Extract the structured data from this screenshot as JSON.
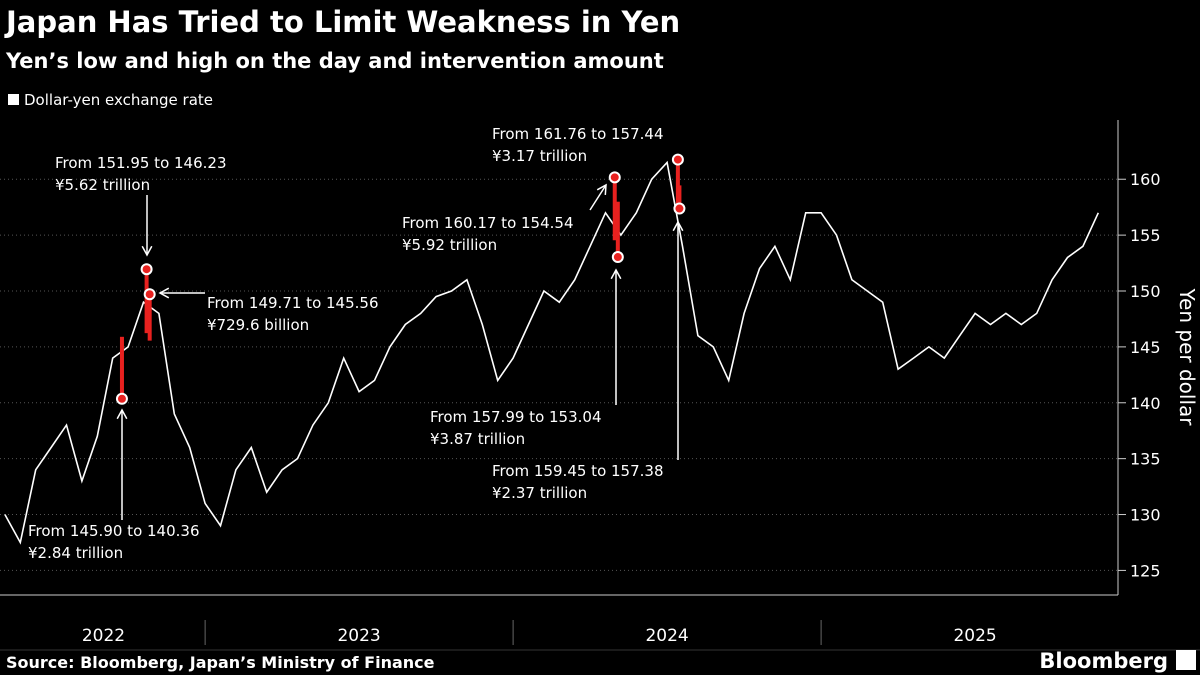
{
  "chart_data": {
    "type": "line",
    "title": "Japan Has Tried to Limit Weakness in Yen",
    "subtitle": "Yen’s low and high on the day and intervention amount",
    "y_label": "Yen per dollar",
    "source": "Source: Bloomberg, Japan’s Ministry of Finance",
    "brand": "Bloomberg",
    "xlim": [
      2022.334,
      2025.964
    ],
    "xticks": [
      2023,
      2024,
      2025
    ],
    "xtick_labels": [
      {
        "value": 2022.67,
        "label": "2022"
      },
      {
        "value": 2023.5,
        "label": "2023"
      },
      {
        "value": 2024.5,
        "label": "2024"
      },
      {
        "value": 2025.5,
        "label": "2025"
      }
    ],
    "ylim": [
      122.8,
      165.3
    ],
    "yticks": [
      125,
      130,
      135,
      140,
      145,
      150,
      155,
      160
    ],
    "grid": true,
    "series": [
      {
        "name": "Dollar-yen exchange rate",
        "color": "#ffffff",
        "x": [
          2022.35,
          2022.4,
          2022.45,
          2022.5,
          2022.55,
          2022.6,
          2022.65,
          2022.7,
          2022.75,
          2022.8,
          2022.85,
          2022.9,
          2022.95,
          2023.0,
          2023.05,
          2023.1,
          2023.15,
          2023.2,
          2023.25,
          2023.3,
          2023.35,
          2023.4,
          2023.45,
          2023.5,
          2023.55,
          2023.6,
          2023.65,
          2023.7,
          2023.75,
          2023.8,
          2023.85,
          2023.9,
          2023.95,
          2024.0,
          2024.05,
          2024.1,
          2024.15,
          2024.2,
          2024.25,
          2024.3,
          2024.35,
          2024.4,
          2024.45,
          2024.5,
          2024.55,
          2024.6,
          2024.65,
          2024.7,
          2024.75,
          2024.8,
          2024.85,
          2024.9,
          2024.95,
          2025.0,
          2025.05,
          2025.1,
          2025.15,
          2025.2,
          2025.25,
          2025.3,
          2025.35,
          2025.4,
          2025.45,
          2025.5,
          2025.55,
          2025.6,
          2025.65,
          2025.7,
          2025.75,
          2025.8,
          2025.85,
          2025.9
        ],
        "values": [
          130,
          127.5,
          134,
          136,
          138,
          133,
          137,
          144,
          145,
          149,
          148,
          139,
          136,
          131,
          129,
          134,
          136,
          132,
          134,
          135,
          138,
          140,
          144,
          141,
          142,
          145,
          147,
          148,
          149.5,
          150,
          151,
          147,
          142,
          144,
          147,
          150,
          149,
          151,
          154,
          157,
          155,
          157,
          160,
          161.5,
          154,
          146,
          145,
          142,
          148,
          152,
          154,
          151,
          157,
          157,
          155,
          151,
          150,
          149,
          143,
          144,
          145,
          144,
          146,
          148,
          147,
          148,
          147,
          148,
          151,
          153,
          154,
          157
        ]
      }
    ],
    "interventions_color": "#e8211f",
    "interventions": [
      {
        "x": 2022.73,
        "high": 145.9,
        "low": 140.36,
        "label": "From 145.90 to 140.36",
        "amount": "¥2.84 trillion"
      },
      {
        "x": 2022.81,
        "high": 151.95,
        "low": 146.23,
        "label": "From 151.95 to 146.23",
        "amount": "¥5.62 trillion"
      },
      {
        "x": 2022.82,
        "high": 149.71,
        "low": 145.56,
        "label": "From 149.71 to 145.56",
        "amount": "¥729.6 billion"
      },
      {
        "x": 2024.33,
        "high": 160.17,
        "low": 154.54,
        "label": "From 160.17 to 154.54",
        "amount": "¥5.92 trillion"
      },
      {
        "x": 2024.34,
        "high": 157.99,
        "low": 153.04,
        "label": "From 157.99 to 153.04",
        "amount": "¥3.87 trillion"
      },
      {
        "x": 2024.535,
        "high": 161.76,
        "low": 157.44,
        "label": "From 161.76 to 157.44",
        "amount": "¥3.17 trillion"
      },
      {
        "x": 2024.54,
        "high": 159.45,
        "low": 157.38,
        "label": "From 159.45 to 157.38",
        "amount": "¥2.37 trillion"
      }
    ]
  }
}
